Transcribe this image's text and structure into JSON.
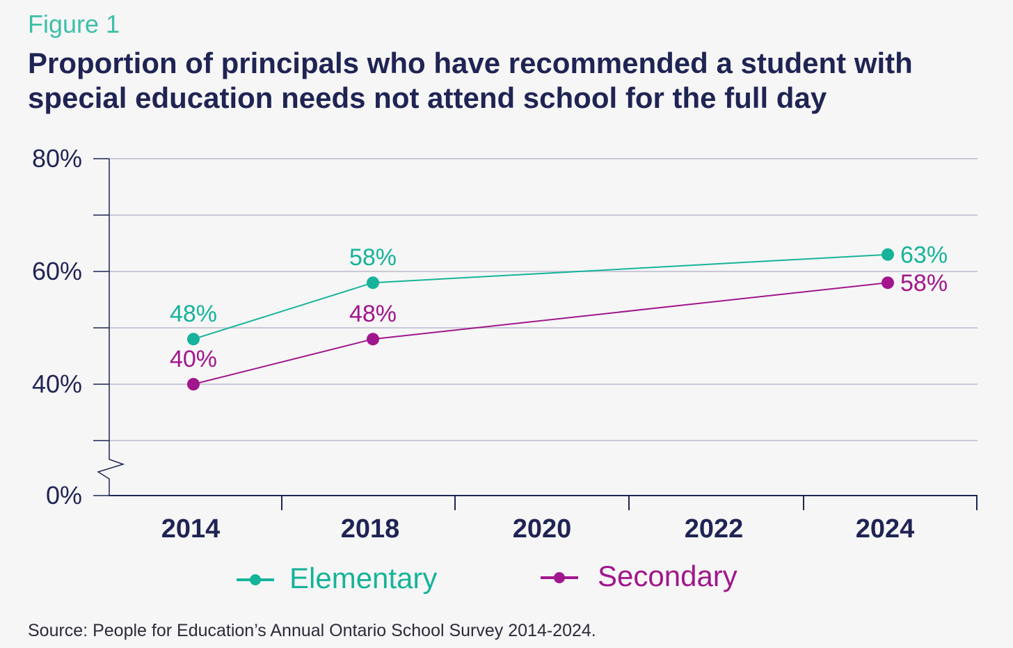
{
  "figure_label": "Figure 1",
  "title": "Proportion of principals who have recommended a student with special education needs not attend school for the full day",
  "source": "Source: People for Education’s Annual Ontario School Survey 2014-2024.",
  "colors": {
    "elementary": "#16b39a",
    "secondary": "#a1168c",
    "axis": "#1f2454",
    "grid": "#c9c9d6"
  },
  "chart_data": {
    "type": "line",
    "title": "Proportion of principals who have recommended a student with special education needs not attend school for the full day",
    "x_ticks": [
      "2014",
      "2018",
      "2020",
      "2022",
      "2024"
    ],
    "y_tick_labels": [
      {
        "value": 80,
        "label": "80%"
      },
      {
        "value": 60,
        "label": "60%"
      },
      {
        "value": 40,
        "label": "40%"
      },
      {
        "value": 0,
        "label": "0%"
      }
    ],
    "ylim": [
      30,
      80
    ],
    "y_axis_break": true,
    "series": [
      {
        "name": "Elementary",
        "x": [
          "2014",
          "2018",
          "2024"
        ],
        "values": [
          48,
          58,
          63
        ],
        "labels": [
          "48%",
          "58%",
          "63%"
        ]
      },
      {
        "name": "Secondary",
        "x": [
          "2014",
          "2018",
          "2024"
        ],
        "values": [
          40,
          48,
          58
        ],
        "labels": [
          "40%",
          "48%",
          "58%"
        ]
      }
    ],
    "legend": [
      "Elementary",
      "Secondary"
    ],
    "legend_position": "bottom"
  }
}
